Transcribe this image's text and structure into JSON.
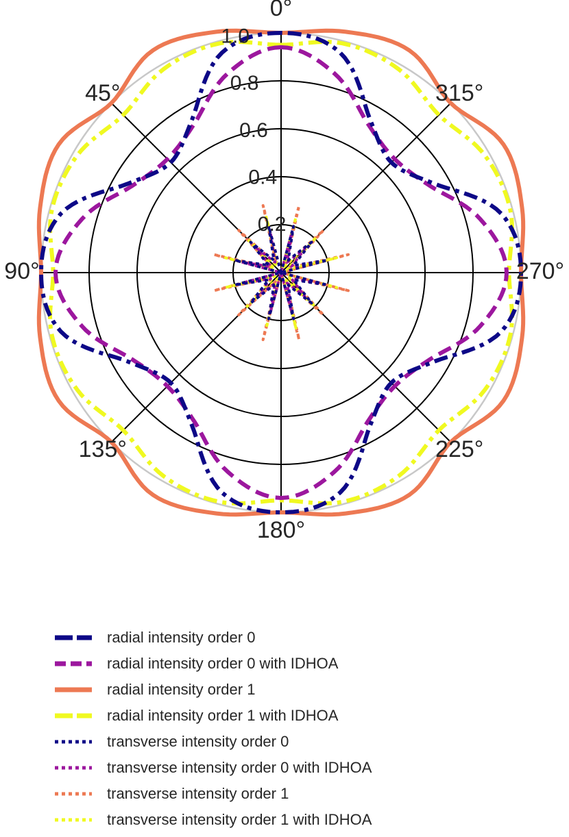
{
  "chart_data": {
    "type": "polar-line",
    "angle_direction": "counter-clockwise",
    "zero_location": "top",
    "angle_ticks": [
      "0°",
      "45°",
      "90°",
      "135°",
      "180°",
      "225°",
      "270°",
      "315°"
    ],
    "angle_tick_values": [
      0,
      45,
      90,
      135,
      180,
      225,
      270,
      315
    ],
    "r_ticks": [
      "0.2",
      "0.4",
      "0.6",
      "0.8",
      "1.0"
    ],
    "r_tick_values": [
      0.2,
      0.4,
      0.6,
      0.8,
      1.0
    ],
    "rlim": [
      0,
      1.0
    ],
    "grid": true,
    "legend_location": "below",
    "series": [
      {
        "name": "radial intensity order 0",
        "color": "#0d0887",
        "style": "dashdot",
        "theta": [
          0,
          15,
          30,
          45,
          60,
          75,
          90
        ],
        "r": [
          1.0,
          0.95,
          0.74,
          0.65,
          0.74,
          0.95,
          1.0
        ]
      },
      {
        "name": "radial intensity order 0 with IDHOA",
        "color": "#9c179e",
        "style": "dashed",
        "theta": [
          0,
          15,
          30,
          45,
          60,
          75,
          90
        ],
        "r": [
          0.94,
          0.86,
          0.72,
          0.67,
          0.72,
          0.86,
          0.94
        ]
      },
      {
        "name": "radial intensity order 1",
        "color": "#ed7953",
        "style": "solid",
        "theta": [
          0,
          15,
          30,
          45,
          60,
          75,
          90
        ],
        "r": [
          1.0,
          1.04,
          1.07,
          1.0,
          1.07,
          1.04,
          1.0
        ]
      },
      {
        "name": "radial intensity order 1 with IDHOA",
        "color": "#f0f921",
        "style": "dashdot",
        "theta": [
          0,
          15,
          30,
          45,
          60,
          75,
          90
        ],
        "r": [
          0.95,
          0.99,
          0.98,
          0.93,
          0.98,
          0.99,
          0.95
        ]
      },
      {
        "name": "transverse intensity order 0",
        "color": "#0d0887",
        "style": "dotted",
        "theta": [
          0,
          15,
          30,
          45,
          60,
          75,
          90
        ],
        "r": [
          0.0,
          0.2,
          0.06,
          0.18,
          0.06,
          0.2,
          0.0
        ]
      },
      {
        "name": "transverse intensity order 0 with IDHOA",
        "color": "#9c179e",
        "style": "dotted",
        "theta": [
          0,
          15,
          30,
          45,
          60,
          75,
          90
        ],
        "r": [
          0.0,
          0.17,
          0.05,
          0.14,
          0.05,
          0.17,
          0.0
        ]
      },
      {
        "name": "transverse intensity order 1",
        "color": "#ed7953",
        "style": "dotted",
        "theta": [
          0,
          15,
          30,
          45,
          60,
          75,
          90
        ],
        "r": [
          0.0,
          0.29,
          0.04,
          0.25,
          0.04,
          0.29,
          0.0
        ]
      },
      {
        "name": "transverse intensity order 1 with IDHOA",
        "color": "#f0f921",
        "style": "dotted",
        "theta": [
          0,
          15,
          30,
          45,
          60,
          75,
          90
        ],
        "r": [
          0.0,
          0.24,
          0.03,
          0.2,
          0.03,
          0.24,
          0.0
        ]
      }
    ]
  }
}
